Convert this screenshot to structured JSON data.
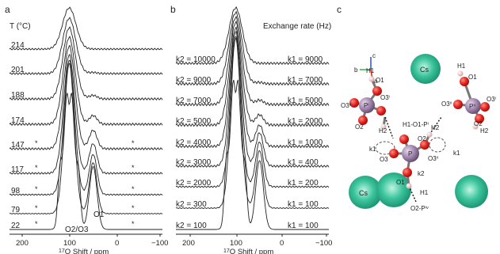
{
  "panel_a": {
    "letter": "a",
    "header": "T (°C)",
    "temperatures": [
      "214",
      "201",
      "188",
      "174",
      "147",
      "117",
      "98",
      "79",
      "22"
    ],
    "star": "*",
    "label_o2o3": "O2/O3",
    "label_o1": "O1"
  },
  "panel_b": {
    "letter": "b",
    "header": "Exchange rate (Hz)",
    "k2_labels": [
      "k2 = 10000",
      "k2 = 9000",
      "k2 = 7000",
      "k2 = 5000",
      "k2 = 4000",
      "k2 = 3000",
      "k2 = 2000",
      "k2 = 300",
      "k2 = 100"
    ],
    "k1_labels": [
      "k1 = 9000",
      "k1 = 7000",
      "k1 = 5000",
      "k1 = 2000",
      "k1 = 1000",
      "k1 = 400",
      "k1 = 200",
      "k1 = 100",
      "k1 = 100"
    ]
  },
  "x_axis": {
    "ticks": [
      "200",
      "100",
      "0",
      "−100"
    ],
    "label": "17O Shift / ppm",
    "label_sup": "17",
    "label_rest": "O Shift / ppm"
  },
  "panel_c": {
    "letter": "c",
    "atoms": {
      "cs": "Cs",
      "p": "P",
      "pi": "Pⁱ",
      "pii": "Pⁱⁱ",
      "h1": "H1",
      "h2": "H2",
      "o1": "O1",
      "o2": "O2",
      "o3": "O3",
      "o3i": "O3ⁱ",
      "o3ii": "O3ⁱⁱ",
      "o1_pi": "H1-O1-Pⁱ",
      "o2_piv": "O2-Pⁱᵛ",
      "k1": "k1",
      "k2": "k2",
      "axis_a": "a",
      "axis_b": "b",
      "axis_c": "c"
    },
    "colors": {
      "cs": "#2bb38f",
      "p": "#9a7fa6",
      "o": "#e0201c",
      "h": "#f2c6c6"
    }
  }
}
